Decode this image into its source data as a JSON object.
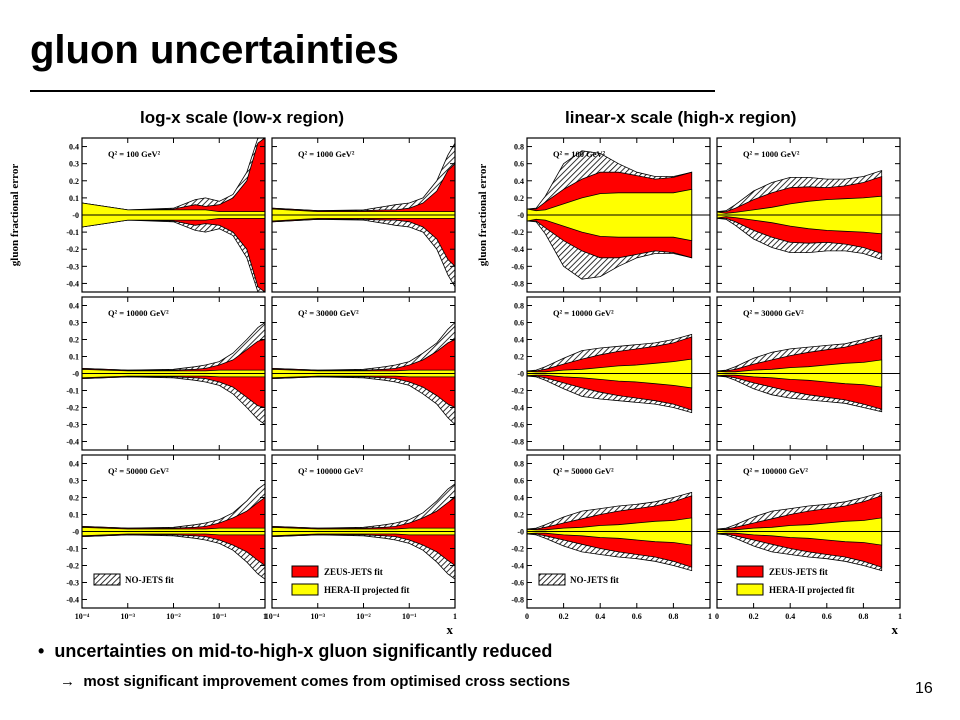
{
  "slide": {
    "title": "gluon uncertainties",
    "heading_left": "log-x scale (low-x region)",
    "heading_right": "linear-x scale (high-x region)",
    "bullet1_marker": "•",
    "bullet1": "uncertainties on mid-to-high-x gluon significantly reduced",
    "bullet2_marker": "→",
    "bullet2": "most significant improvement comes from optimised cross sections",
    "page_number": "16"
  },
  "colors": {
    "nojets": "#000000",
    "zeus": "#ff0000",
    "hera": "#ffff00"
  },
  "chart_data": [
    {
      "type": "area",
      "name": "log-x scale (low-x region)",
      "ylabel": "gluon fractional error",
      "xlabel": "x",
      "x_scale": "log",
      "xlim": [
        0.0001,
        1
      ],
      "ylim": [
        -0.45,
        0.45
      ],
      "x_tick_labels": [
        "10⁻⁴",
        "10⁻³",
        "10⁻²",
        "10⁻¹",
        "1"
      ],
      "y_tick_labels": [
        "0.4",
        "0.3",
        "0.2",
        "0.1",
        "-0",
        "-0.1",
        "-0.2",
        "-0.3",
        "-0.4"
      ],
      "legend": {
        "position": "bottom",
        "entries": [
          "NO-JETS fit",
          "ZEUS-JETS fit",
          "HERA-II projected fit"
        ]
      },
      "x": [
        0.0001,
        0.001,
        0.01,
        0.03,
        0.05,
        0.1,
        0.2,
        0.4,
        0.7,
        1.0
      ],
      "panels": [
        {
          "label": "Q² = 100 GeV²",
          "nojets": [
            0.07,
            0.03,
            0.04,
            0.09,
            0.1,
            0.08,
            0.12,
            0.25,
            0.45,
            0.45
          ],
          "zeus": [
            0.07,
            0.03,
            0.035,
            0.06,
            0.05,
            0.06,
            0.1,
            0.2,
            0.42,
            0.45
          ],
          "hera": [
            0.07,
            0.03,
            0.03,
            0.03,
            0.03,
            0.02,
            0.02,
            0.02,
            0.02,
            0.02
          ]
        },
        {
          "label": "Q² = 1000 GeV²",
          "nojets": [
            0.04,
            0.025,
            0.03,
            0.05,
            0.06,
            0.07,
            0.1,
            0.2,
            0.35,
            0.42
          ],
          "zeus": [
            0.04,
            0.025,
            0.025,
            0.03,
            0.03,
            0.04,
            0.07,
            0.14,
            0.26,
            0.3
          ],
          "hera": [
            0.035,
            0.02,
            0.02,
            0.02,
            0.02,
            0.02,
            0.02,
            0.02,
            0.02,
            0.02
          ]
        },
        {
          "label": "Q² = 10000 GeV²",
          "nojets": [
            0.03,
            0.02,
            0.025,
            0.04,
            0.05,
            0.07,
            0.12,
            0.2,
            0.27,
            0.3
          ],
          "zeus": [
            0.03,
            0.02,
            0.02,
            0.025,
            0.03,
            0.05,
            0.08,
            0.14,
            0.19,
            0.2
          ],
          "hera": [
            0.025,
            0.015,
            0.015,
            0.015,
            0.015,
            0.02,
            0.02,
            0.02,
            0.02,
            0.02
          ]
        },
        {
          "label": "Q² = 30000 GeV²",
          "nojets": [
            0.03,
            0.02,
            0.025,
            0.04,
            0.05,
            0.07,
            0.12,
            0.18,
            0.26,
            0.3
          ],
          "zeus": [
            0.03,
            0.02,
            0.02,
            0.025,
            0.03,
            0.05,
            0.08,
            0.13,
            0.18,
            0.2
          ],
          "hera": [
            0.025,
            0.015,
            0.015,
            0.015,
            0.015,
            0.02,
            0.02,
            0.02,
            0.02,
            0.02
          ]
        },
        {
          "label": "Q² = 50000 GeV²",
          "nojets": [
            0.03,
            0.02,
            0.025,
            0.04,
            0.05,
            0.07,
            0.11,
            0.18,
            0.25,
            0.28
          ],
          "zeus": [
            0.03,
            0.02,
            0.02,
            0.025,
            0.03,
            0.05,
            0.08,
            0.12,
            0.17,
            0.2
          ],
          "hera": [
            0.025,
            0.015,
            0.015,
            0.015,
            0.015,
            0.02,
            0.02,
            0.02,
            0.02,
            0.02
          ]
        },
        {
          "label": "Q² = 100000 GeV²",
          "nojets": [
            0.03,
            0.02,
            0.025,
            0.04,
            0.05,
            0.07,
            0.11,
            0.18,
            0.25,
            0.28
          ],
          "zeus": [
            0.03,
            0.02,
            0.02,
            0.025,
            0.03,
            0.05,
            0.08,
            0.12,
            0.17,
            0.2
          ],
          "hera": [
            0.025,
            0.015,
            0.015,
            0.015,
            0.015,
            0.02,
            0.02,
            0.02,
            0.02,
            0.02
          ]
        }
      ]
    },
    {
      "type": "area",
      "name": "linear-x scale (high-x region)",
      "ylabel": "gluon fractional error",
      "xlabel": "x",
      "x_scale": "linear",
      "xlim": [
        0,
        1
      ],
      "ylim": [
        -0.9,
        0.9
      ],
      "x_tick_labels": [
        "0",
        "0.2",
        "0.4",
        "0.6",
        "0.8",
        "1"
      ],
      "y_tick_labels": [
        "0.8",
        "0.6",
        "0.4",
        "0.2",
        "-0",
        "-0.2",
        "-0.4",
        "-0.6",
        "-0.8"
      ],
      "legend": {
        "position": "bottom",
        "entries": [
          "NO-JETS fit",
          "ZEUS-JETS fit",
          "HERA-II projected fit"
        ]
      },
      "x": [
        0.0,
        0.05,
        0.1,
        0.2,
        0.3,
        0.4,
        0.5,
        0.6,
        0.7,
        0.8,
        0.9
      ],
      "panels": [
        {
          "label": "Q² = 100 GeV²",
          "nojets": [
            0.07,
            0.08,
            0.22,
            0.6,
            0.75,
            0.72,
            0.6,
            0.5,
            0.45,
            0.45,
            0.5
          ],
          "zeus": [
            0.07,
            0.07,
            0.15,
            0.3,
            0.42,
            0.5,
            0.5,
            0.46,
            0.42,
            0.44,
            0.5
          ],
          "hera": [
            0.07,
            0.05,
            0.06,
            0.13,
            0.2,
            0.25,
            0.26,
            0.26,
            0.26,
            0.26,
            0.3
          ]
        },
        {
          "label": "Q² = 1000 GeV²",
          "nojets": [
            0.04,
            0.05,
            0.12,
            0.28,
            0.38,
            0.44,
            0.44,
            0.42,
            0.42,
            0.45,
            0.52
          ],
          "zeus": [
            0.04,
            0.04,
            0.08,
            0.18,
            0.26,
            0.32,
            0.33,
            0.32,
            0.34,
            0.38,
            0.45
          ],
          "hera": [
            0.035,
            0.02,
            0.03,
            0.06,
            0.09,
            0.13,
            0.16,
            0.18,
            0.19,
            0.2,
            0.22
          ]
        },
        {
          "label": "Q² = 10000 GeV²",
          "nojets": [
            0.03,
            0.04,
            0.08,
            0.18,
            0.27,
            0.3,
            0.32,
            0.34,
            0.36,
            0.4,
            0.46
          ],
          "zeus": [
            0.03,
            0.03,
            0.05,
            0.11,
            0.17,
            0.22,
            0.26,
            0.29,
            0.32,
            0.36,
            0.43
          ],
          "hera": [
            0.025,
            0.02,
            0.02,
            0.04,
            0.05,
            0.07,
            0.09,
            0.1,
            0.12,
            0.14,
            0.17
          ]
        },
        {
          "label": "Q² = 30000 GeV²",
          "nojets": [
            0.03,
            0.04,
            0.08,
            0.18,
            0.25,
            0.29,
            0.31,
            0.33,
            0.35,
            0.4,
            0.45
          ],
          "zeus": [
            0.03,
            0.03,
            0.05,
            0.11,
            0.16,
            0.21,
            0.25,
            0.28,
            0.31,
            0.36,
            0.42
          ],
          "hera": [
            0.025,
            0.02,
            0.02,
            0.04,
            0.05,
            0.07,
            0.08,
            0.1,
            0.12,
            0.13,
            0.16
          ]
        },
        {
          "label": "Q² = 50000 GeV²",
          "nojets": [
            0.03,
            0.04,
            0.08,
            0.17,
            0.24,
            0.27,
            0.3,
            0.32,
            0.35,
            0.4,
            0.46
          ],
          "zeus": [
            0.03,
            0.03,
            0.05,
            0.1,
            0.15,
            0.2,
            0.24,
            0.27,
            0.3,
            0.35,
            0.42
          ],
          "hera": [
            0.025,
            0.02,
            0.02,
            0.04,
            0.05,
            0.07,
            0.08,
            0.1,
            0.12,
            0.13,
            0.16
          ]
        },
        {
          "label": "Q² = 100000 GeV²",
          "nojets": [
            0.03,
            0.04,
            0.08,
            0.17,
            0.24,
            0.27,
            0.3,
            0.32,
            0.35,
            0.4,
            0.46
          ],
          "zeus": [
            0.03,
            0.03,
            0.05,
            0.1,
            0.15,
            0.2,
            0.24,
            0.27,
            0.3,
            0.35,
            0.42
          ],
          "hera": [
            0.025,
            0.02,
            0.02,
            0.04,
            0.05,
            0.07,
            0.08,
            0.1,
            0.12,
            0.13,
            0.16
          ]
        }
      ]
    }
  ]
}
